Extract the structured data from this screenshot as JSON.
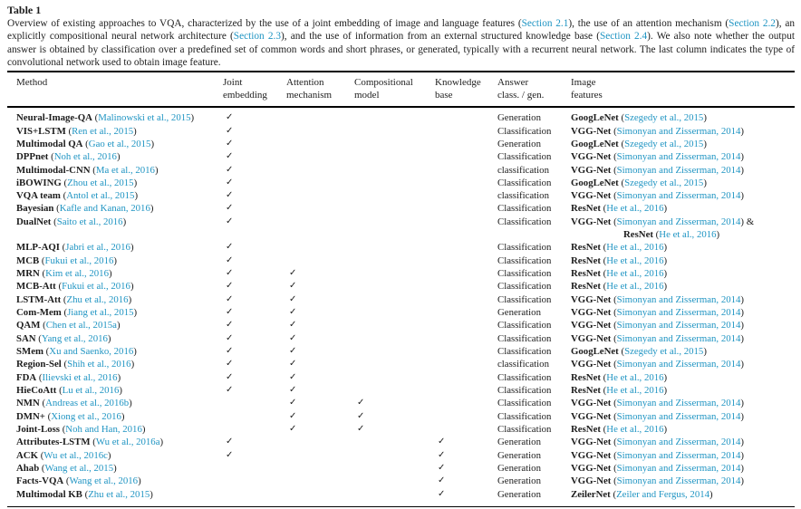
{
  "title": "Table 1",
  "colors": {
    "link": "#2095c3",
    "text": "#1d1d1d",
    "rule": "#000000"
  },
  "icons": {
    "check_glyph": "✓"
  },
  "caption_segments": [
    {
      "text": "Overview of existing approaches to VQA, characterized by the use of a joint embedding of image and language features ("
    },
    {
      "link": "Section 2.1"
    },
    {
      "text": "), the use of an attention mechanism ("
    },
    {
      "link": "Section 2.2"
    },
    {
      "text": "), an explicitly compositional neural network architecture ("
    },
    {
      "link": "Section 2.3"
    },
    {
      "text": "), and the use of information from an external structured knowledge base ("
    },
    {
      "link": "Section 2.4"
    },
    {
      "text": "). We also note whether the output answer is obtained by classification over a predefined set of common words and short phrases, or generated, typically with a recurrent neural network. The last column indicates the type of convolutional network used to obtain image feature."
    }
  ],
  "table": {
    "columns": [
      {
        "l1": "Method",
        "l2": ""
      },
      {
        "l1": "Joint",
        "l2": "embedding"
      },
      {
        "l1": "Attention",
        "l2": "mechanism"
      },
      {
        "l1": "Compositional",
        "l2": "model"
      },
      {
        "l1": "Knowledge",
        "l2": "base"
      },
      {
        "l1": "Answer",
        "l2": "class. / gen."
      },
      {
        "l1": "Image",
        "l2": "features"
      }
    ],
    "rows": [
      {
        "method": "Neural-Image-QA",
        "cite": "Malinowski et al., 2015",
        "joint": true,
        "attention": false,
        "compositional": false,
        "knowledge": false,
        "answer": "Generation",
        "features": [
          {
            "net": "GoogLeNet",
            "cite": "Szegedy et al., 2015",
            "suffix": ""
          }
        ]
      },
      {
        "method": "VIS+LSTM",
        "cite": "Ren et al., 2015",
        "joint": true,
        "attention": false,
        "compositional": false,
        "knowledge": false,
        "answer": "Classification",
        "features": [
          {
            "net": "VGG-Net",
            "cite": "Simonyan and Zisserman, 2014",
            "suffix": ""
          }
        ]
      },
      {
        "method": "Multimodal QA",
        "cite": "Gao et al., 2015",
        "joint": true,
        "attention": false,
        "compositional": false,
        "knowledge": false,
        "answer": "Generation",
        "features": [
          {
            "net": "GoogLeNet",
            "cite": "Szegedy et al., 2015",
            "suffix": ""
          }
        ]
      },
      {
        "method": "DPPnet",
        "cite": "Noh et al., 2016",
        "joint": true,
        "attention": false,
        "compositional": false,
        "knowledge": false,
        "answer": "Classification",
        "features": [
          {
            "net": "VGG-Net",
            "cite": "Simonyan and Zisserman, 2014",
            "suffix": ""
          }
        ]
      },
      {
        "method": "Multimodal-CNN",
        "cite": "Ma et al., 2016",
        "joint": true,
        "attention": false,
        "compositional": false,
        "knowledge": false,
        "answer": "classification",
        "features": [
          {
            "net": "VGG-Net",
            "cite": "Simonyan and Zisserman, 2014",
            "suffix": ""
          }
        ]
      },
      {
        "method": "iBOWING",
        "cite": "Zhou et al., 2015",
        "joint": true,
        "attention": false,
        "compositional": false,
        "knowledge": false,
        "answer": "Classification",
        "features": [
          {
            "net": "GoogLeNet",
            "cite": "Szegedy et al., 2015",
            "suffix": ""
          }
        ]
      },
      {
        "method": "VQA team",
        "cite": "Antol et al., 2015",
        "joint": true,
        "attention": false,
        "compositional": false,
        "knowledge": false,
        "answer": "classification",
        "features": [
          {
            "net": "VGG-Net",
            "cite": "Simonyan and Zisserman, 2014",
            "suffix": ""
          }
        ]
      },
      {
        "method": "Bayesian",
        "cite": "Kafle and Kanan, 2016",
        "joint": true,
        "attention": false,
        "compositional": false,
        "knowledge": false,
        "answer": "Classification",
        "features": [
          {
            "net": "ResNet",
            "cite": "He et al., 2016",
            "suffix": ""
          }
        ]
      },
      {
        "method": "DualNet",
        "cite": "Saito et al., 2016",
        "joint": true,
        "attention": false,
        "compositional": false,
        "knowledge": false,
        "answer": "Classification",
        "features": [
          {
            "net": "VGG-Net",
            "cite": "Simonyan and Zisserman, 2014",
            "suffix": " &"
          },
          {
            "net": "ResNet",
            "cite": "He et al., 2016",
            "suffix": "",
            "indent": true
          }
        ]
      },
      {
        "method": "MLP-AQI",
        "cite": "Jabri et al., 2016",
        "joint": true,
        "attention": false,
        "compositional": false,
        "knowledge": false,
        "answer": "Classification",
        "features": [
          {
            "net": "ResNet",
            "cite": "He et al., 2016",
            "suffix": ""
          }
        ]
      },
      {
        "method": "MCB",
        "cite": "Fukui et al., 2016",
        "joint": true,
        "attention": false,
        "compositional": false,
        "knowledge": false,
        "answer": "Classification",
        "features": [
          {
            "net": "ResNet",
            "cite": "He et al., 2016",
            "suffix": ""
          }
        ]
      },
      {
        "method": "MRN",
        "cite": "Kim et al., 2016",
        "joint": true,
        "attention": true,
        "compositional": false,
        "knowledge": false,
        "answer": "Classification",
        "features": [
          {
            "net": "ResNet",
            "cite": "He et al., 2016",
            "suffix": ""
          }
        ]
      },
      {
        "method": "MCB-Att",
        "cite": "Fukui et al., 2016",
        "joint": true,
        "attention": true,
        "compositional": false,
        "knowledge": false,
        "answer": "Classification",
        "features": [
          {
            "net": "ResNet",
            "cite": "He et al., 2016",
            "suffix": ""
          }
        ]
      },
      {
        "method": "LSTM-Att",
        "cite": "Zhu et al., 2016",
        "joint": true,
        "attention": true,
        "compositional": false,
        "knowledge": false,
        "answer": "Classification",
        "features": [
          {
            "net": "VGG-Net",
            "cite": "Simonyan and Zisserman, 2014",
            "suffix": ""
          }
        ]
      },
      {
        "method": "Com-Mem",
        "cite": "Jiang et al., 2015",
        "joint": true,
        "attention": true,
        "compositional": false,
        "knowledge": false,
        "answer": "Generation",
        "features": [
          {
            "net": "VGG-Net",
            "cite": "Simonyan and Zisserman, 2014",
            "suffix": ""
          }
        ]
      },
      {
        "method": "QAM",
        "cite": "Chen et al., 2015a",
        "joint": true,
        "attention": true,
        "compositional": false,
        "knowledge": false,
        "answer": "Classification",
        "features": [
          {
            "net": "VGG-Net",
            "cite": "Simonyan and Zisserman, 2014",
            "suffix": ""
          }
        ]
      },
      {
        "method": "SAN",
        "cite": "Yang et al., 2016",
        "joint": true,
        "attention": true,
        "compositional": false,
        "knowledge": false,
        "answer": "Classification",
        "features": [
          {
            "net": "VGG-Net",
            "cite": "Simonyan and Zisserman, 2014",
            "suffix": ""
          }
        ]
      },
      {
        "method": "SMem",
        "cite": "Xu and Saenko, 2016",
        "joint": true,
        "attention": true,
        "compositional": false,
        "knowledge": false,
        "answer": "Classification",
        "features": [
          {
            "net": "GoogLeNet",
            "cite": "Szegedy et al., 2015",
            "suffix": ""
          }
        ]
      },
      {
        "method": "Region-Sel",
        "cite": "Shih et al., 2016",
        "joint": true,
        "attention": true,
        "compositional": false,
        "knowledge": false,
        "answer": "classification",
        "features": [
          {
            "net": "VGG-Net",
            "cite": "Simonyan and Zisserman, 2014",
            "suffix": ""
          }
        ]
      },
      {
        "method": "FDA",
        "cite": "Ilievski et al., 2016",
        "joint": true,
        "attention": true,
        "compositional": false,
        "knowledge": false,
        "answer": "Classification",
        "features": [
          {
            "net": "ResNet",
            "cite": "He et al., 2016",
            "suffix": ""
          }
        ]
      },
      {
        "method": "HieCoAtt",
        "cite": "Lu et al., 2016",
        "joint": true,
        "attention": true,
        "compositional": false,
        "knowledge": false,
        "answer": "Classification",
        "features": [
          {
            "net": "ResNet",
            "cite": "He et al., 2016",
            "suffix": ""
          }
        ]
      },
      {
        "method": "NMN",
        "cite": "Andreas et al., 2016b",
        "joint": false,
        "attention": true,
        "compositional": true,
        "knowledge": false,
        "answer": "Classification",
        "features": [
          {
            "net": "VGG-Net",
            "cite": "Simonyan and Zisserman, 2014",
            "suffix": ""
          }
        ]
      },
      {
        "method": "DMN+",
        "cite": "Xiong et al., 2016",
        "joint": false,
        "attention": true,
        "compositional": true,
        "knowledge": false,
        "answer": "Classification",
        "features": [
          {
            "net": "VGG-Net",
            "cite": "Simonyan and Zisserman, 2014",
            "suffix": ""
          }
        ]
      },
      {
        "method": "Joint-Loss",
        "cite": "Noh and Han, 2016",
        "joint": false,
        "attention": true,
        "compositional": true,
        "knowledge": false,
        "answer": "Classification",
        "features": [
          {
            "net": "ResNet",
            "cite": "He et al., 2016",
            "suffix": ""
          }
        ]
      },
      {
        "method": "Attributes-LSTM",
        "cite": "Wu et al., 2016a",
        "joint": true,
        "attention": false,
        "compositional": false,
        "knowledge": true,
        "answer": "Generation",
        "features": [
          {
            "net": "VGG-Net",
            "cite": "Simonyan and Zisserman, 2014",
            "suffix": ""
          }
        ]
      },
      {
        "method": "ACK",
        "cite": "Wu et al., 2016c",
        "joint": true,
        "attention": false,
        "compositional": false,
        "knowledge": true,
        "answer": "Generation",
        "features": [
          {
            "net": "VGG-Net",
            "cite": "Simonyan and Zisserman, 2014",
            "suffix": ""
          }
        ]
      },
      {
        "method": "Ahab",
        "cite": "Wang et al., 2015",
        "joint": false,
        "attention": false,
        "compositional": false,
        "knowledge": true,
        "answer": "Generation",
        "features": [
          {
            "net": "VGG-Net",
            "cite": "Simonyan and Zisserman, 2014",
            "suffix": ""
          }
        ]
      },
      {
        "method": "Facts-VQA",
        "cite": "Wang et al., 2016",
        "joint": false,
        "attention": false,
        "compositional": false,
        "knowledge": true,
        "answer": "Generation",
        "features": [
          {
            "net": "VGG-Net",
            "cite": "Simonyan and Zisserman, 2014",
            "suffix": ""
          }
        ]
      },
      {
        "method": "Multimodal KB",
        "cite": "Zhu et al., 2015",
        "joint": false,
        "attention": false,
        "compositional": false,
        "knowledge": true,
        "answer": "Generation",
        "features": [
          {
            "net": "ZeilerNet",
            "cite": "Zeiler and Fergus, 2014",
            "suffix": ""
          }
        ]
      }
    ]
  }
}
